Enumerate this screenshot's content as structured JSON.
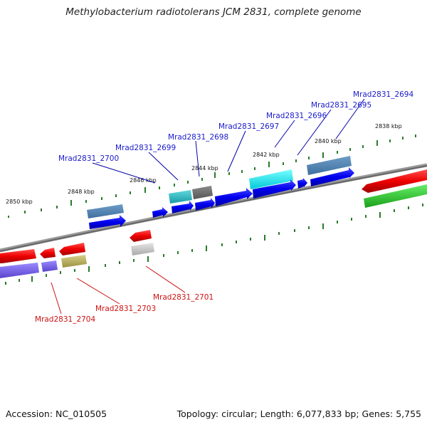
{
  "title": "Methylobacterium radiotolerans JCM 2831, complete genome",
  "footer": {
    "accession": "Accession: NC_010505",
    "info": "Topology: circular; Length: 6,077,833 bp; Genes: 5,755"
  },
  "kbp_labels": [
    "2838 kbp",
    "2840 kbp",
    "2842 kbp",
    "2844 kbp",
    "2846 kbp",
    "2848 kbp",
    "2850 kbp"
  ],
  "gene_labels_upper": [
    "Mrad2831_2694",
    "Mrad2831_2695",
    "Mrad2831_2696",
    "Mrad2831_2697",
    "Mrad2831_2698",
    "Mrad2831_2699",
    "Mrad2831_2700"
  ],
  "gene_labels_lower": [
    "Mrad2831_2701",
    "Mrad2831_2703",
    "Mrad2831_2704"
  ],
  "colors": {
    "forward_label": "#1a1acc",
    "reverse_label": "#cc1111",
    "tick": "#2a7a2a",
    "backbone": "#777777"
  }
}
